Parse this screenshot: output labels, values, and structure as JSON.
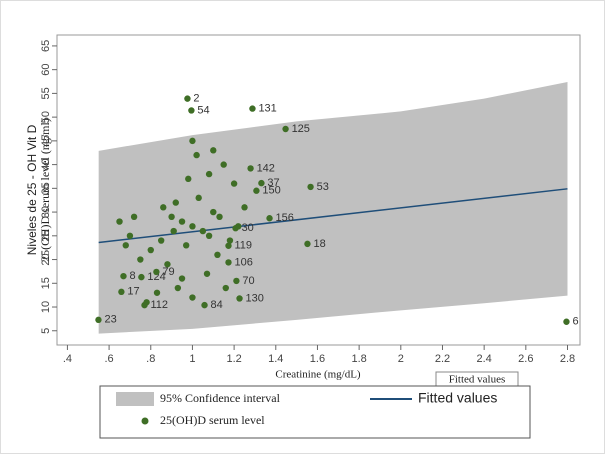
{
  "chart_data": {
    "type": "scatter",
    "y_title": [
      "Niveles de 25 - OH Vit D",
      "25(OH)D serum level (ng/ml)"
    ],
    "x_title": "Creatinine (mg/dL)",
    "xlim": [
      0.35,
      2.86
    ],
    "ylim": [
      2,
      67.3
    ],
    "xticks": [
      {
        "value": 0.4,
        "label": ".4"
      },
      {
        "value": 0.6,
        "label": ".6"
      },
      {
        "value": 0.8,
        "label": ".8"
      },
      1,
      1.2,
      1.4,
      1.6,
      1.8,
      2,
      2.2,
      2.4,
      2.6,
      2.8
    ],
    "yticks": [
      5,
      10,
      15,
      20,
      25,
      30,
      35,
      40,
      45,
      50,
      55,
      60,
      65
    ],
    "band": {
      "name": "95% Confidence interval",
      "color": "#c0c0c0",
      "x": [
        0.55,
        1.0,
        1.5,
        2.0,
        2.4,
        2.8
      ],
      "lower": [
        4.4,
        5.4,
        7.3,
        9.3,
        10.8,
        12.4
      ],
      "upper": [
        42.9,
        46.2,
        49.1,
        51.2,
        53.9,
        57.4
      ]
    },
    "fit": {
      "name": "Fitted values",
      "color": "#1f4e79",
      "x": [
        0.55,
        2.8
      ],
      "values": [
        23.6,
        34.9
      ]
    },
    "annotation": "Fitted values",
    "series": [
      {
        "name": "25(OH)D serum level",
        "color": "#3f6e26",
        "x": [
          0.976,
          0.995,
          1.288,
          1.447,
          1.279,
          1.567,
          1.37,
          1.552,
          1.207,
          1.173,
          1.211,
          1.226,
          0.549,
          2.795,
          0.659,
          0.77,
          1.058,
          0.669,
          0.755,
          0.827,
          1.173,
          1.331,
          1.307,
          0.9,
          0.95,
          1.0,
          1.05,
          1.1,
          0.85,
          0.8,
          0.75,
          0.7,
          0.65,
          0.92,
          0.98,
          1.02,
          1.1,
          1.15,
          1.2,
          0.88,
          0.93,
          1.0,
          1.07,
          1.12,
          1.18,
          0.83,
          0.78,
          1.03,
          0.97,
          1.08,
          1.13,
          0.91,
          1.25,
          0.72,
          0.86,
          1.0,
          1.08,
          0.95,
          1.16,
          1.22,
          0.68
        ],
        "values": [
          53.9,
          51.4,
          51.8,
          47.5,
          39.2,
          35.3,
          28.7,
          23.3,
          26.6,
          22.9,
          15.5,
          11.8,
          7.3,
          6.9,
          13.2,
          10.4,
          10.4,
          16.5,
          16.3,
          17.4,
          19.4,
          36.1,
          34.5,
          29,
          28,
          27,
          26,
          30,
          24,
          22,
          20,
          25,
          28,
          32,
          37,
          42,
          43,
          40,
          36,
          19,
          14,
          12,
          17,
          21,
          24,
          13,
          11,
          33,
          23,
          25,
          29,
          26,
          31,
          29,
          31,
          45,
          38,
          16,
          14,
          27,
          23
        ],
        "labels": [
          2,
          54,
          131,
          125,
          142,
          53,
          156,
          18,
          30,
          119,
          70,
          130,
          23,
          6,
          17,
          112,
          84,
          8,
          124,
          79,
          106,
          37,
          150,
          null,
          null,
          null,
          null,
          null,
          null,
          null,
          null,
          null,
          null,
          null,
          null,
          null,
          null,
          null,
          null,
          null,
          null,
          null,
          null,
          null,
          null,
          null,
          null,
          null,
          null,
          null,
          null,
          null,
          null,
          null,
          null,
          null,
          null,
          null,
          null,
          null,
          null
        ]
      }
    ]
  }
}
